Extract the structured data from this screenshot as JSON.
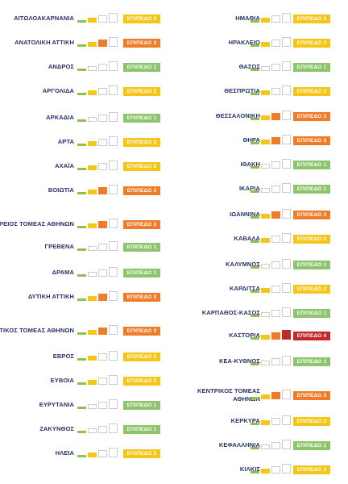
{
  "colors": {
    "name_text": "#28306b",
    "bar_inactive_border": "#cccccc",
    "bar_1_active": "#8bc34a",
    "bar_2_active": "#f5c518",
    "bar_3_active": "#f07b28",
    "bar_4_active": "#c62828",
    "level_1": "#8cc56b",
    "level_2": "#f5c518",
    "level_3": "#f07b28",
    "level_4": "#c62828"
  },
  "levels": {
    "1": "ΕΠΙΠΕΔΟ 1",
    "2": "ΕΠΙΠΕΔΟ 2",
    "3": "ΕΠΙΠΕΔΟ 3",
    "4": "ΕΠΙΠΕΔΟ 4"
  },
  "left_column": [
    {
      "name": "ΑΙΤΩΛΟΑΚΑΡΝΑΝΙΑ",
      "level": 2
    },
    {
      "name": "ΑΝΑΤΟΛΙΚΗ ΑΤΤΙΚΗ",
      "level": 3
    },
    {
      "name": "ΑΝΔΡΟΣ",
      "level": 1
    },
    {
      "name": "ΑΡΓΟΛΙΔΑ",
      "level": 2
    },
    {
      "name": "ΑΡΚΑΔΙΑ",
      "level": 1
    },
    {
      "name": "ΑΡΤΑ",
      "level": 2
    },
    {
      "name": "ΑΧΑΪΑ",
      "level": 2
    },
    {
      "name": "ΒΟΙΩΤΙΑ",
      "level": 3
    },
    {
      "name": "ΒΟΡΕΙΟΣ ΤΟΜΕΑΣ ΑΘΗΝΩΝ",
      "level": 3
    },
    {
      "name": "ΓΡΕΒΕΝΑ",
      "level": 1
    },
    {
      "name": "ΔΡΑΜΑ",
      "level": 1
    },
    {
      "name": "ΔΥΤΙΚΗ ΑΤΤΙΚΗ",
      "level": 3
    },
    {
      "name": "ΔΥΤΙΚΟΣ ΤΟΜΕΑΣ ΑΘΗΝΩΝ",
      "level": 3
    },
    {
      "name": "ΕΒΡΟΣ",
      "level": 2
    },
    {
      "name": "ΕΥΒΟΙΑ",
      "level": 2
    },
    {
      "name": "ΕΥΡΥΤΑΝΙΑ",
      "level": 1
    },
    {
      "name": "ΖΑΚΥΝΘΟΣ",
      "level": 1
    },
    {
      "name": "ΗΛΕΙΑ",
      "level": 2
    }
  ],
  "right_column": [
    {
      "name": "ΗΜΑΘΙΑ",
      "level": 2
    },
    {
      "name": "ΗΡΑΚΛΕΙΟ",
      "level": 2
    },
    {
      "name": "ΘΑΣΟΣ",
      "level": 1
    },
    {
      "name": "ΘΕΣΠΡΩΤΙΑ",
      "level": 2
    },
    {
      "name": "ΘΕΣΣΑΛΟΝΙΚΗ",
      "level": 3
    },
    {
      "name": "ΘΗΡΑ",
      "level": 3
    },
    {
      "name": "ΙΘΑΚΗ",
      "level": 1
    },
    {
      "name": "ΙΚΑΡΙΑ",
      "level": 1
    },
    {
      "name": "ΙΩΑΝΝΙΝΑ",
      "level": 3
    },
    {
      "name": "ΚΑΒΑΛΑ",
      "level": 2
    },
    {
      "name": "ΚΑΛΥΜΝΟΣ",
      "level": 1
    },
    {
      "name": "ΚΑΡΔΙΤΣΑ",
      "level": 2
    },
    {
      "name": "ΚΑΡΠΑΘΟΣ-ΚΑΣΟΣ",
      "level": 1
    },
    {
      "name": "ΚΑΣΤΟΡΙΑ",
      "level": 4
    },
    {
      "name": "ΚΕΑ-ΚΥΘΝΟΣ",
      "level": 1
    },
    {
      "name": "ΚΕΝΤΡΙΚΟΣ ΤΟΜΕΑΣ ΑΘΗΝΩΝ",
      "level": 3
    },
    {
      "name": "ΚΕΡΚΥΡΑ",
      "level": 2
    },
    {
      "name": "ΚΕΦΑΛΛΗΝΙΑ",
      "level": 1
    },
    {
      "name": "ΚΙΛΚΙΣ",
      "level": 2
    }
  ]
}
